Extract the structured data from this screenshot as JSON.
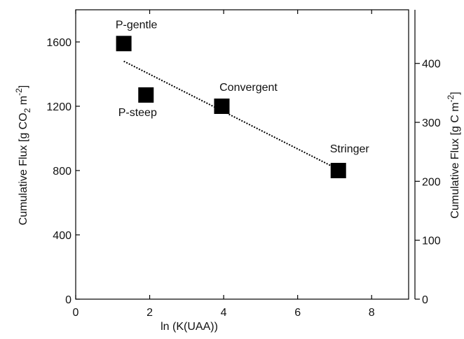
{
  "chart_data": {
    "type": "scatter",
    "x": [
      1.3,
      1.9,
      3.95,
      7.1
    ],
    "series": [
      {
        "color": "#000000",
        "values": [
          1590,
          1270,
          1200,
          800
        ]
      }
    ],
    "point_labels": [
      "P-gentle",
      "P-steep",
      "Convergent",
      "Stringer"
    ],
    "trend": {
      "x": [
        1.3,
        6.9
      ],
      "y": [
        1480,
        830
      ]
    },
    "xlabel": "ln (K(UAA))",
    "ylabel": [
      "Cumulative Flux [g CO",
      "2",
      " m",
      "-2",
      "]"
    ],
    "y2label": [
      "Cumulative Flux [g C m",
      "-2",
      "]"
    ],
    "xlim": [
      0,
      9
    ],
    "xticks": [
      0,
      2,
      4,
      6,
      8
    ],
    "ylim": [
      0,
      1800
    ],
    "yticks": [
      0,
      400,
      800,
      1200,
      1600
    ],
    "y2lim": [
      0,
      491
    ],
    "y2ticks": [
      0,
      100,
      200,
      300,
      400
    ]
  }
}
